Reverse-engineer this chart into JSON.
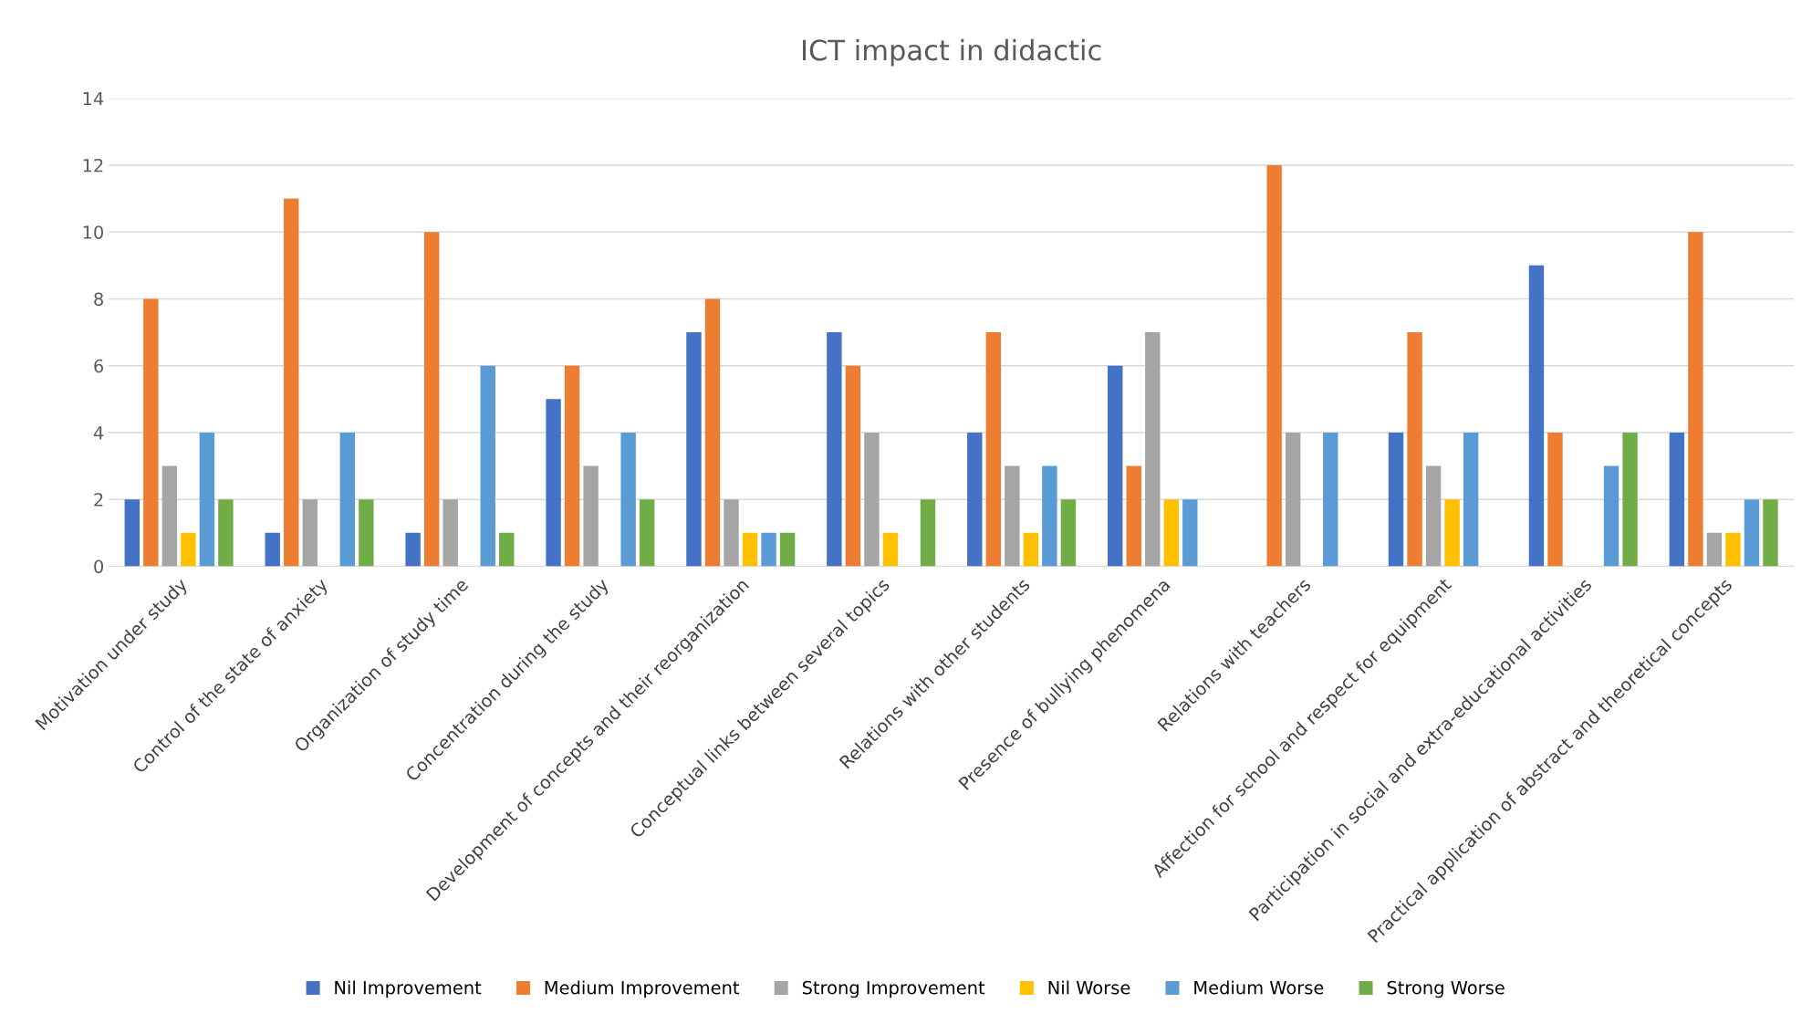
{
  "chart_data": {
    "type": "bar",
    "title": "ICT impact in didactic",
    "categories": [
      "Motivation under study",
      "Control of the state of anxiety",
      "Organization of study time",
      "Concentration during the study",
      "Development of concepts and their reorganization",
      "Conceptual links between several topics",
      "Relations with other students",
      "Presence of bullying phenomena",
      "Relations with teachers",
      "Affection for school and respect for equipment",
      "Participation in social and extra-educational activities",
      "Practical application of abstract and theoretical concepts"
    ],
    "series": [
      {
        "name": "Nil Improvement",
        "color": "#4472c4",
        "values": [
          2,
          1,
          1,
          5,
          7,
          7,
          4,
          6,
          0,
          4,
          9,
          4
        ]
      },
      {
        "name": "Medium Improvement",
        "color": "#ed7d31",
        "values": [
          8,
          11,
          10,
          6,
          8,
          6,
          7,
          3,
          12,
          7,
          4,
          10
        ]
      },
      {
        "name": "Strong Improvement",
        "color": "#a5a5a5",
        "values": [
          3,
          2,
          2,
          3,
          2,
          4,
          3,
          7,
          4,
          3,
          0,
          1
        ]
      },
      {
        "name": "Nil Worse",
        "color": "#ffc000",
        "values": [
          1,
          0,
          0,
          0,
          1,
          1,
          1,
          2,
          0,
          2,
          0,
          1
        ]
      },
      {
        "name": "Medium Worse",
        "color": "#5b9bd5",
        "values": [
          4,
          4,
          6,
          4,
          1,
          0,
          3,
          2,
          4,
          4,
          3,
          2
        ]
      },
      {
        "name": "Strong Worse",
        "color": "#70ad47",
        "values": [
          2,
          2,
          1,
          2,
          1,
          2,
          2,
          0,
          0,
          0,
          4,
          2
        ]
      }
    ],
    "ylim": [
      0,
      14
    ],
    "yticks": [
      0,
      2,
      4,
      6,
      8,
      10,
      12,
      14
    ],
    "grid": "y",
    "legend": "bottom"
  }
}
